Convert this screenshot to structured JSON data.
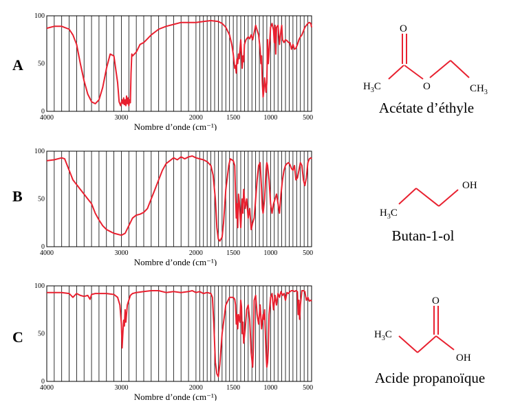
{
  "colors": {
    "spectrum": "#e8202f",
    "bond": "#e8202f",
    "grid": "#000000"
  },
  "chart_data": [
    {
      "type": "line",
      "panel_label": "A",
      "xlabel": "Nombre d’onde (cm⁻¹)",
      "xlim": [
        4000,
        450
      ],
      "ylim": [
        0,
        100
      ],
      "xticks": [
        "4000",
        "3000",
        "2000",
        "1500",
        "1000",
        "500"
      ],
      "yticks": [
        "0",
        "50",
        "100"
      ],
      "series": [
        {
          "x": [
            4000,
            3900,
            3800,
            3700,
            3650,
            3600,
            3550,
            3500,
            3450,
            3400,
            3350,
            3300,
            3250,
            3200,
            3150,
            3100,
            3050,
            3030,
            3010,
            2990,
            2980,
            2970,
            2960,
            2950,
            2940,
            2930,
            2920,
            2910,
            2900,
            2890,
            2880,
            2870,
            2860,
            2850,
            2800,
            2750,
            2700,
            2650,
            2600,
            2500,
            2400,
            2300,
            2200,
            2100,
            2000,
            1900,
            1800,
            1700,
            1650,
            1600,
            1550,
            1520,
            1500,
            1480,
            1470,
            1460,
            1450,
            1440,
            1430,
            1420,
            1400,
            1390,
            1380,
            1370,
            1360,
            1350,
            1330,
            1300,
            1280,
            1260,
            1240,
            1200,
            1180,
            1160,
            1140,
            1130,
            1120,
            1110,
            1100,
            1090,
            1080,
            1070,
            1060,
            1050,
            1040,
            1030,
            1020,
            1000,
            980,
            960,
            950,
            940,
            930,
            920,
            900,
            880,
            860,
            850,
            840,
            820,
            800,
            780,
            760,
            740,
            720,
            700,
            680,
            660,
            640,
            620,
            600,
            580,
            560,
            540,
            520,
            500,
            480,
            460,
            450
          ],
          "y": [
            87,
            89,
            89,
            86,
            80,
            70,
            50,
            32,
            18,
            10,
            8,
            12,
            25,
            45,
            60,
            58,
            30,
            10,
            6,
            12,
            8,
            14,
            7,
            12,
            6,
            16,
            8,
            14,
            6,
            12,
            9,
            40,
            60,
            58,
            62,
            70,
            72,
            76,
            80,
            86,
            89,
            91,
            93,
            93,
            93,
            94,
            95,
            94,
            92,
            88,
            80,
            70,
            60,
            45,
            48,
            40,
            55,
            50,
            60,
            55,
            75,
            60,
            45,
            58,
            52,
            70,
            75,
            78,
            76,
            80,
            75,
            90,
            85,
            80,
            65,
            50,
            58,
            30,
            15,
            22,
            35,
            28,
            20,
            30,
            75,
            50,
            62,
            88,
            92,
            85,
            72,
            90,
            60,
            88,
            90,
            70,
            85,
            90,
            75,
            72,
            75,
            74,
            72,
            72,
            65,
            70,
            65,
            66,
            70,
            75,
            78,
            80,
            84,
            88,
            90,
            92,
            93,
            92,
            88
          ]
        }
      ]
    },
    {
      "type": "line",
      "panel_label": "B",
      "xlabel": "Nombre d’onde (cm⁻¹)",
      "xlim": [
        4000,
        450
      ],
      "ylim": [
        0,
        100
      ],
      "xticks": [
        "4000",
        "3000",
        "2000",
        "1500",
        "1000",
        "500"
      ],
      "yticks": [
        "0",
        "50",
        "100"
      ],
      "series": [
        {
          "x": [
            4000,
            3900,
            3800,
            3760,
            3700,
            3650,
            3600,
            3550,
            3500,
            3450,
            3400,
            3350,
            3300,
            3250,
            3200,
            3150,
            3100,
            3050,
            3000,
            2950,
            2900,
            2850,
            2800,
            2750,
            2700,
            2650,
            2600,
            2550,
            2500,
            2450,
            2400,
            2350,
            2300,
            2250,
            2200,
            2150,
            2100,
            2050,
            2000,
            1950,
            1900,
            1850,
            1800,
            1770,
            1740,
            1720,
            1700,
            1680,
            1650,
            1630,
            1600,
            1560,
            1540,
            1500,
            1480,
            1470,
            1460,
            1450,
            1440,
            1430,
            1420,
            1400,
            1380,
            1370,
            1360,
            1340,
            1320,
            1300,
            1280,
            1260,
            1240,
            1220,
            1200,
            1180,
            1160,
            1140,
            1120,
            1110,
            1100,
            1080,
            1060,
            1050,
            1040,
            1020,
            1000,
            980,
            960,
            940,
            920,
            900,
            880,
            860,
            840,
            820,
            800,
            780,
            760,
            740,
            720,
            700,
            680,
            660,
            640,
            620,
            600,
            580,
            560,
            540,
            520,
            500,
            480,
            460,
            450
          ],
          "y": [
            90,
            91,
            93,
            92,
            80,
            70,
            65,
            60,
            55,
            50,
            45,
            35,
            28,
            22,
            18,
            16,
            14,
            13,
            12,
            14,
            22,
            30,
            33,
            34,
            36,
            40,
            50,
            60,
            70,
            80,
            87,
            90,
            93,
            91,
            94,
            92,
            94,
            95,
            93,
            92,
            91,
            89,
            85,
            75,
            50,
            20,
            8,
            6,
            10,
            25,
            60,
            85,
            92,
            90,
            85,
            55,
            30,
            45,
            20,
            55,
            48,
            20,
            50,
            35,
            60,
            40,
            50,
            30,
            40,
            18,
            25,
            30,
            50,
            70,
            85,
            88,
            60,
            40,
            35,
            50,
            80,
            88,
            85,
            70,
            45,
            35,
            45,
            50,
            55,
            45,
            35,
            55,
            70,
            80,
            85,
            87,
            88,
            86,
            82,
            80,
            85,
            70,
            72,
            80,
            88,
            85,
            70,
            64,
            72,
            88,
            92,
            93,
            92
          ]
        }
      ]
    },
    {
      "type": "line",
      "panel_label": "C",
      "xlabel": "Nombre d’onde (cm⁻¹)",
      "xlim": [
        4000,
        450
      ],
      "ylim": [
        0,
        100
      ],
      "xticks": [
        "4000",
        "3000",
        "2000",
        "1500",
        "1000",
        "500"
      ],
      "yticks": [
        "0",
        "50",
        "100"
      ],
      "series": [
        {
          "x": [
            4000,
            3900,
            3800,
            3700,
            3650,
            3600,
            3550,
            3500,
            3450,
            3420,
            3400,
            3350,
            3300,
            3200,
            3100,
            3050,
            3020,
            3000,
            2990,
            2980,
            2970,
            2960,
            2950,
            2940,
            2920,
            2900,
            2880,
            2850,
            2800,
            2700,
            2600,
            2500,
            2400,
            2300,
            2200,
            2100,
            2050,
            2000,
            1950,
            1900,
            1850,
            1800,
            1780,
            1760,
            1740,
            1720,
            1700,
            1680,
            1650,
            1600,
            1550,
            1500,
            1480,
            1470,
            1460,
            1450,
            1440,
            1430,
            1420,
            1410,
            1400,
            1390,
            1380,
            1370,
            1360,
            1340,
            1320,
            1300,
            1280,
            1260,
            1240,
            1230,
            1220,
            1200,
            1180,
            1160,
            1140,
            1120,
            1100,
            1090,
            1080,
            1070,
            1060,
            1050,
            1040,
            1030,
            1020,
            1000,
            980,
            960,
            940,
            920,
            900,
            880,
            860,
            840,
            820,
            800,
            780,
            760,
            740,
            720,
            700,
            680,
            660,
            640,
            630,
            620,
            610,
            600,
            580,
            560,
            540,
            520,
            500,
            480,
            460,
            450
          ],
          "y": [
            93,
            93,
            93,
            92,
            88,
            92,
            90,
            89,
            90,
            86,
            91,
            92,
            92,
            92,
            91,
            88,
            80,
            60,
            35,
            50,
            64,
            58,
            75,
            62,
            80,
            85,
            90,
            92,
            93,
            94,
            95,
            95,
            93,
            94,
            93,
            94,
            95,
            93,
            94,
            92,
            93,
            92,
            88,
            60,
            20,
            8,
            5,
            18,
            50,
            80,
            88,
            88,
            86,
            80,
            60,
            70,
            55,
            70,
            65,
            62,
            85,
            78,
            50,
            62,
            40,
            55,
            75,
            80,
            65,
            30,
            15,
            35,
            85,
            90,
            70,
            60,
            80,
            55,
            70,
            65,
            75,
            50,
            30,
            15,
            20,
            35,
            70,
            88,
            92,
            75,
            90,
            80,
            92,
            88,
            94,
            90,
            92,
            85,
            93,
            92,
            94,
            95,
            95,
            94,
            95,
            94,
            70,
            85,
            65,
            80,
            95,
            95,
            94,
            85,
            88,
            84,
            85,
            84
          ]
        }
      ]
    }
  ],
  "compounds": [
    {
      "name": "Acétate d’éthyle",
      "atoms": {
        "o_top": "O",
        "o_ester": "O",
        "h_left": "H",
        "sub_left": "3",
        "c_left": "C",
        "c_right": "CH",
        "sub_right": "3"
      }
    },
    {
      "name": "Butan-1-ol",
      "atoms": {
        "oh": "OH",
        "h_left": "H",
        "sub_left": "3",
        "c_left": "C"
      }
    },
    {
      "name": "Acide propanoïque",
      "atoms": {
        "o_top": "O",
        "oh": "OH",
        "h_left": "H",
        "sub_left": "3",
        "c_left": "C"
      }
    }
  ]
}
